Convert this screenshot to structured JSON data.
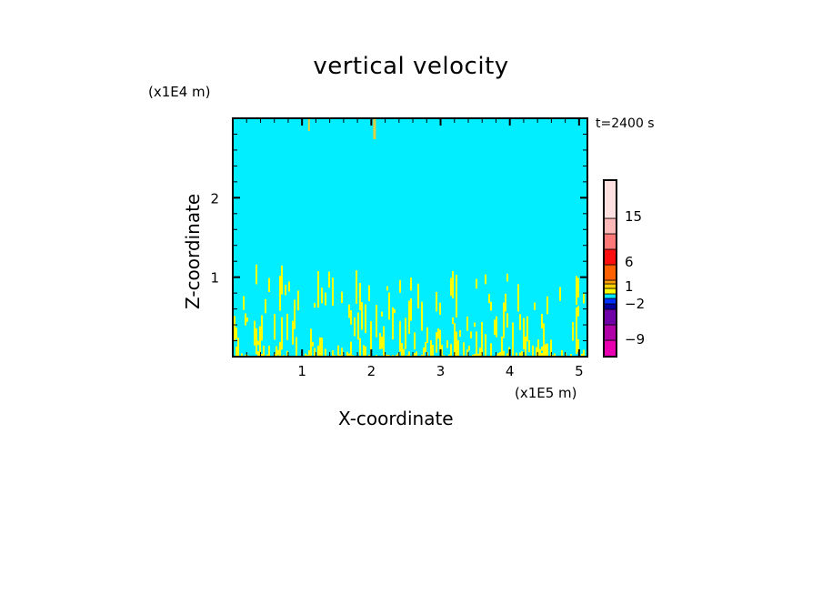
{
  "chart_data": {
    "type": "heatmap",
    "title": "vertical velocity",
    "xlabel": "X-coordinate",
    "ylabel": "Z-coordinate",
    "x_unit": "(x1E5 m)",
    "y_unit": "(x1E4 m)",
    "annotation": "t=2400 s",
    "xlim": [
      0,
      5.12
    ],
    "ylim": [
      0,
      3.0
    ],
    "x_ticks": [
      "1",
      "2",
      "3",
      "4",
      "5"
    ],
    "x_tick_values": [
      1,
      2,
      3,
      4,
      5
    ],
    "y_ticks": [
      "1",
      "2"
    ],
    "y_tick_values": [
      1,
      2
    ],
    "background_field_color": "#00eeff",
    "updraft_color": "#ffff00",
    "updraft_max_height_typical": 1.0,
    "colorbar": {
      "tick_labels": [
        "15",
        "6",
        "1",
        "−2",
        "−9"
      ],
      "tick_values": [
        15,
        6,
        1,
        -2,
        -9
      ],
      "colors_bottom_to_top": [
        "#e800b0",
        "#b000a8",
        "#7000a8",
        "#0000a0",
        "#0030ff",
        "#00e8ff",
        "#ffff00",
        "#ffd000",
        "#ffa000",
        "#ff6000",
        "#ff1010",
        "#ff7878",
        "#ffb8b8",
        "#ffe0e0"
      ]
    }
  }
}
